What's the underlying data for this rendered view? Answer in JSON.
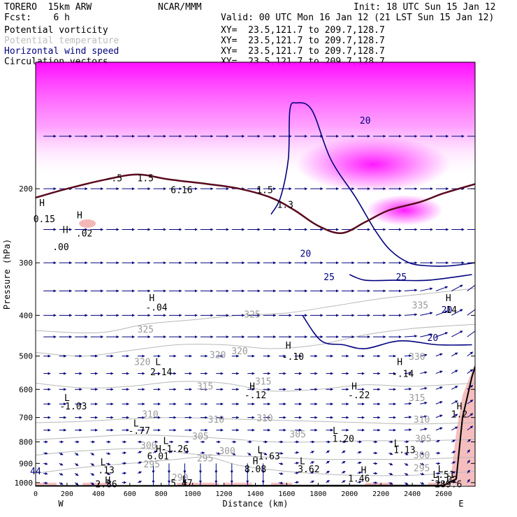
{
  "header": {
    "model": "TORERO  15km ARW",
    "center": "NCAR/MMM",
    "init": "Init: 18 UTC Sun 15 Jan 12",
    "fcst": "Fcst:    6 h",
    "valid": "Valid: 00 UTC Mon 16 Jan 12 (21 LST Sun 15 Jan 12)",
    "fields": [
      {
        "label": "Potential vorticity",
        "color": "#000000",
        "xy": "XY=  23.5,121.7 to 209.7,128.7"
      },
      {
        "label": "Potential temperature",
        "color": "#bdbdbd",
        "xy": "XY=  23.5,121.7 to 209.7,128.7"
      },
      {
        "label": "Horizontal wind speed",
        "color": "#00007f",
        "xy": "XY=  23.5,121.7 to 209.7,128.7"
      },
      {
        "label": "Circulation vectors",
        "color": "#000000",
        "xy": "XY=  23.5,121.7 to 209.7,128.7"
      }
    ]
  },
  "chart_data": {
    "type": "cross-section",
    "xlabel": "Distance (km)",
    "ylabel": "Pressure (hPa)",
    "xlim": [
      0,
      2800
    ],
    "ylim": [
      1020,
      100
    ],
    "xticks": [
      0,
      200,
      400,
      600,
      800,
      1000,
      1200,
      1400,
      1600,
      1800,
      2000,
      2200,
      2400,
      2600
    ],
    "yticks": [
      200,
      300,
      400,
      500,
      600,
      700,
      800,
      900,
      1000
    ],
    "y_scale": "log",
    "x_end_labels": {
      "left": "W",
      "right": "E"
    },
    "colors": {
      "theta": "#b8b8b8",
      "wind": "#00007f",
      "pv": "#000000",
      "pv_high": "#ff00ff",
      "pv_neg": "#f4b7b7",
      "tropopause": "#5a0a1e",
      "terrain": "#000000"
    },
    "theta_contours": [
      {
        "value": 325,
        "points": [
          [
            0,
            435
          ],
          [
            400,
            440
          ],
          [
            700,
            420
          ],
          [
            1000,
            410
          ],
          [
            1300,
            400
          ],
          [
            1600,
            395
          ],
          [
            1900,
            380
          ],
          [
            2200,
            365
          ],
          [
            2500,
            355
          ],
          [
            2800,
            345
          ]
        ]
      },
      {
        "value": 320,
        "points": [
          [
            0,
            490
          ],
          [
            300,
            500
          ],
          [
            600,
            485
          ],
          [
            900,
            470
          ],
          [
            1200,
            470
          ],
          [
            1500,
            480
          ],
          [
            1800,
            470
          ],
          [
            2100,
            445
          ],
          [
            2400,
            430
          ],
          [
            2800,
            420
          ]
        ]
      },
      {
        "value": 315,
        "points": [
          [
            0,
            580
          ],
          [
            300,
            595
          ],
          [
            600,
            590
          ],
          [
            900,
            575
          ],
          [
            1200,
            580
          ],
          [
            1500,
            605
          ],
          [
            1800,
            600
          ],
          [
            2100,
            585
          ],
          [
            2400,
            590
          ],
          [
            2800,
            580
          ]
        ]
      },
      {
        "value": 310,
        "points": [
          [
            0,
            720
          ],
          [
            300,
            715
          ],
          [
            600,
            705
          ],
          [
            900,
            700
          ],
          [
            1200,
            705
          ],
          [
            1500,
            710
          ],
          [
            1800,
            715
          ],
          [
            2100,
            720
          ],
          [
            2400,
            725
          ],
          [
            2800,
            720
          ]
        ]
      },
      {
        "value": 305,
        "points": [
          [
            0,
            790
          ],
          [
            300,
            780
          ],
          [
            600,
            770
          ],
          [
            900,
            775
          ],
          [
            1200,
            785
          ],
          [
            1500,
            800
          ],
          [
            1800,
            800
          ],
          [
            2100,
            795
          ],
          [
            2400,
            795
          ],
          [
            2800,
            790
          ]
        ]
      },
      {
        "value": 300,
        "points": [
          [
            0,
            860
          ],
          [
            300,
            840
          ],
          [
            700,
            830
          ],
          [
            1000,
            855
          ],
          [
            1300,
            865
          ],
          [
            1500,
            870
          ],
          [
            1800,
            880
          ],
          [
            2100,
            880
          ],
          [
            2400,
            880
          ],
          [
            2800,
            870
          ]
        ]
      },
      {
        "value": 295,
        "points": [
          [
            0,
            950
          ],
          [
            300,
            920
          ],
          [
            600,
            900
          ],
          [
            900,
            880
          ],
          [
            1100,
            870
          ],
          [
            1300,
            910
          ],
          [
            1600,
            940
          ],
          [
            2000,
            960
          ],
          [
            2400,
            960
          ],
          [
            2800,
            940
          ]
        ]
      }
    ],
    "wind_speed_contours": [
      {
        "value": 20,
        "points": [
          [
            1500,
            230
          ],
          [
            1560,
            210
          ],
          [
            1610,
            170
          ],
          [
            1620,
            130
          ],
          [
            1660,
            125
          ],
          [
            1760,
            130
          ],
          [
            1880,
            170
          ],
          [
            2040,
            210
          ],
          [
            2160,
            250
          ],
          [
            2260,
            280
          ],
          [
            2380,
            300
          ],
          [
            2500,
            305
          ],
          [
            2640,
            305
          ],
          [
            2800,
            300
          ]
        ]
      },
      {
        "value": 25,
        "points": [
          [
            2000,
            320
          ],
          [
            2100,
            330
          ],
          [
            2280,
            330
          ],
          [
            2500,
            330
          ],
          [
            2780,
            320
          ]
        ]
      },
      {
        "value": 20,
        "points": [
          [
            1700,
            400
          ],
          [
            1820,
            460
          ],
          [
            1960,
            470
          ],
          [
            2100,
            480
          ],
          [
            2320,
            460
          ],
          [
            2560,
            470
          ],
          [
            2780,
            470
          ]
        ]
      }
    ],
    "pv_labels": [
      {
        "text": "-.5",
        "x": 500,
        "p": 192
      },
      {
        "text": "1.5",
        "x": 700,
        "p": 192
      },
      {
        "text": "6.16",
        "x": 930,
        "p": 205
      },
      {
        "text": "1.5",
        "x": 1460,
        "p": 205
      },
      {
        "text": "1.3",
        "x": 1590,
        "p": 222
      },
      {
        "text": "H",
        "x": 40,
        "p": 220
      },
      {
        "text": "0.15",
        "x": 55,
        "p": 240
      },
      {
        "text": "H",
        "x": 280,
        "p": 235
      },
      {
        "text": ".02",
        "x": 310,
        "p": 260
      },
      {
        "text": "H",
        "x": 190,
        "p": 255
      },
      {
        "text": ".00",
        "x": 160,
        "p": 280
      },
      {
        "text": "H",
        "x": 740,
        "p": 370
      },
      {
        "text": "-.04",
        "x": 770,
        "p": 390
      },
      {
        "text": "L",
        "x": 780,
        "p": 525
      },
      {
        "text": "2.14",
        "x": 800,
        "p": 555
      },
      {
        "text": "H",
        "x": 1610,
        "p": 480
      },
      {
        "text": "-.10",
        "x": 1640,
        "p": 510
      },
      {
        "text": "H",
        "x": 2320,
        "p": 525
      },
      {
        "text": "-.14",
        "x": 2340,
        "p": 560
      },
      {
        "text": "H",
        "x": 2630,
        "p": 370
      },
      {
        "text": "14",
        "x": 2650,
        "p": 395
      },
      {
        "text": "L",
        "x": 200,
        "p": 640
      },
      {
        "text": "-1.03",
        "x": 240,
        "p": 670
      },
      {
        "text": "H",
        "x": 1380,
        "p": 600
      },
      {
        "text": "-.12",
        "x": 1400,
        "p": 630
      },
      {
        "text": "H",
        "x": 2030,
        "p": 600
      },
      {
        "text": "-.22",
        "x": 2060,
        "p": 630
      },
      {
        "text": "H",
        "x": 2700,
        "p": 670
      },
      {
        "text": "1.2",
        "x": 2700,
        "p": 700
      },
      {
        "text": "L",
        "x": 640,
        "p": 735
      },
      {
        "text": "-.77",
        "x": 660,
        "p": 765
      },
      {
        "text": "L",
        "x": 1910,
        "p": 765
      },
      {
        "text": "1.20",
        "x": 1960,
        "p": 800
      },
      {
        "text": "L",
        "x": 830,
        "p": 810
      },
      {
        "text": "H-1.26",
        "x": 870,
        "p": 845
      },
      {
        "text": "6.01",
        "x": 780,
        "p": 880
      },
      {
        "text": "L",
        "x": 1430,
        "p": 850
      },
      {
        "text": "-1.63",
        "x": 1470,
        "p": 880
      },
      {
        "text": "L",
        "x": 2300,
        "p": 820
      },
      {
        "text": "1.13",
        "x": 2350,
        "p": 850
      },
      {
        "text": "L",
        "x": 430,
        "p": 910
      },
      {
        "text": ".13",
        "x": 450,
        "p": 950
      },
      {
        "text": "H",
        "x": 1400,
        "p": 905
      },
      {
        "text": "8.08",
        "x": 1400,
        "p": 945
      },
      {
        "text": "L",
        "x": 1700,
        "p": 905
      },
      {
        "text": "3.62",
        "x": 1740,
        "p": 945
      },
      {
        "text": "H",
        "x": 2090,
        "p": 950
      },
      {
        "text": "L.51",
        "x": 2600,
        "p": 975
      },
      {
        "text": "L",
        "x": 2580,
        "p": 945
      },
      {
        "text": "1.46",
        "x": 2060,
        "p": 995
      },
      {
        "text": "-1.02",
        "x": 2600,
        "p": 1000
      },
      {
        "text": "H",
        "x": 460,
        "p": 1005
      },
      {
        "text": "2.86",
        "x": 450,
        "p": 1025
      },
      {
        "text": "5.47",
        "x": 930,
        "p": 1020
      },
      {
        "text": "289.6",
        "x": 2630,
        "p": 1025
      },
      {
        "text": "L",
        "x": 950,
        "p": 1000
      }
    ],
    "theta_labels": [
      {
        "text": "325",
        "x": 700,
        "p": 440
      },
      {
        "text": "325",
        "x": 1380,
        "p": 405
      },
      {
        "text": "320",
        "x": 1300,
        "p": 495
      },
      {
        "text": "320",
        "x": 1160,
        "p": 505
      },
      {
        "text": "320",
        "x": 680,
        "p": 525
      },
      {
        "text": "315",
        "x": 1450,
        "p": 585
      },
      {
        "text": "315",
        "x": 1080,
        "p": 600
      },
      {
        "text": "310",
        "x": 730,
        "p": 700
      },
      {
        "text": "310",
        "x": 1150,
        "p": 720
      },
      {
        "text": "310",
        "x": 1460,
        "p": 715
      },
      {
        "text": "305",
        "x": 1050,
        "p": 790
      },
      {
        "text": "305",
        "x": 1670,
        "p": 780
      },
      {
        "text": "300",
        "x": 720,
        "p": 830
      },
      {
        "text": "300",
        "x": 1220,
        "p": 855
      },
      {
        "text": "300",
        "x": 2460,
        "p": 875
      },
      {
        "text": "295",
        "x": 740,
        "p": 920
      },
      {
        "text": "295",
        "x": 1080,
        "p": 890
      },
      {
        "text": "295",
        "x": 2460,
        "p": 940
      },
      {
        "text": "290",
        "x": 920,
        "p": 990
      },
      {
        "text": "330",
        "x": 2430,
        "p": 510
      },
      {
        "text": "335",
        "x": 2450,
        "p": 385
      },
      {
        "text": "315",
        "x": 2430,
        "p": 640
      },
      {
        "text": "310",
        "x": 2460,
        "p": 720
      },
      {
        "text": "305",
        "x": 2470,
        "p": 800
      }
    ],
    "wind_labels": [
      {
        "text": "20",
        "x": 1720,
        "p": 290
      },
      {
        "text": "25",
        "x": 1870,
        "p": 330
      },
      {
        "text": "25",
        "x": 2330,
        "p": 330
      },
      {
        "text": "20",
        "x": 2530,
        "p": 460
      },
      {
        "text": "20",
        "x": 2620,
        "p": 395
      },
      {
        "text": "20",
        "x": 2100,
        "p": 140
      }
    ],
    "edge_labels": [
      {
        "text": "44",
        "x": 0,
        "p": 955
      }
    ]
  }
}
